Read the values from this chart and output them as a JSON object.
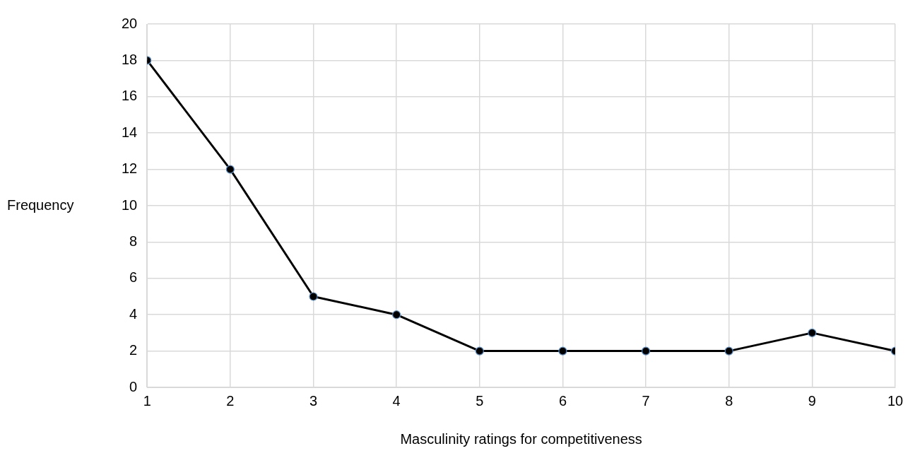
{
  "chart_data": {
    "type": "line",
    "xlabel": "Masculinity ratings for competitiveness",
    "ylabel": "Frequency",
    "x": [
      1,
      2,
      3,
      4,
      5,
      6,
      7,
      8,
      9,
      10
    ],
    "series": [
      {
        "color": "#000000",
        "values": [
          18,
          12,
          5,
          4,
          2,
          2,
          2,
          2,
          3,
          2
        ]
      }
    ],
    "xlim": [
      1,
      10
    ],
    "xticks": [
      1,
      2,
      3,
      4,
      5,
      6,
      7,
      8,
      9,
      10
    ],
    "ylim": [
      0,
      20
    ],
    "yticks": [
      0,
      2,
      4,
      6,
      8,
      10,
      12,
      14,
      16,
      18,
      20
    ],
    "grid": true,
    "legend": false,
    "marker": "circle",
    "line_style": "solid"
  }
}
